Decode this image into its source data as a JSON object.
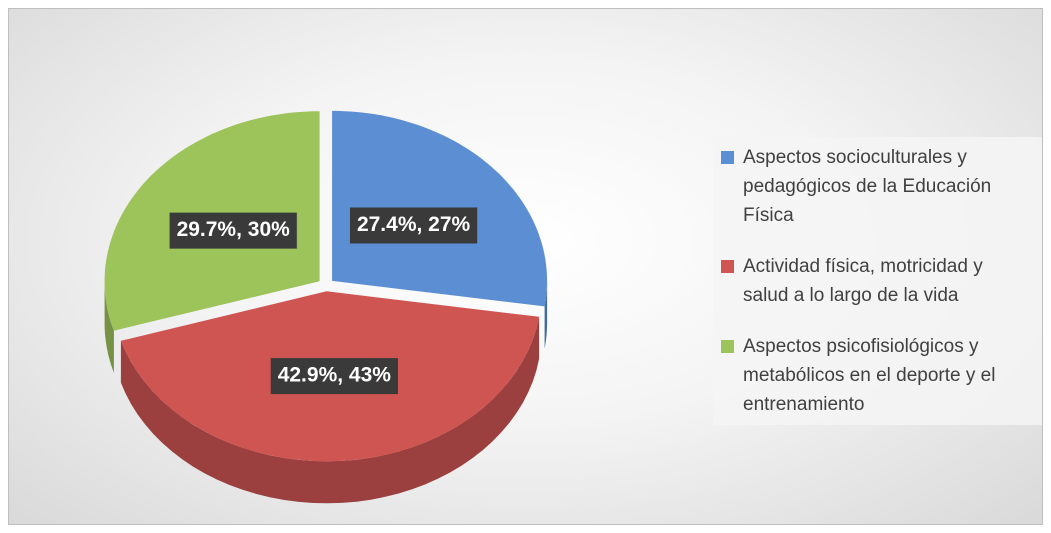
{
  "chart_data": {
    "type": "pie",
    "categories": [
      "Aspectos socioculturales y pedagógicos de la Educación Física",
      "Actividad física, motricidad y salud a lo largo de la vida",
      "Aspectos psicofisiológicos y metabólicos en el deporte y el entrenamiento"
    ],
    "values": [
      27.4,
      42.9,
      29.7
    ],
    "value_labels": [
      "27.4%, 27%",
      "42.9%, 43%",
      "29.7%, 30%"
    ],
    "colors": [
      "#5b8ed3",
      "#cf5553",
      "#9dc35b"
    ],
    "legend": "right"
  }
}
